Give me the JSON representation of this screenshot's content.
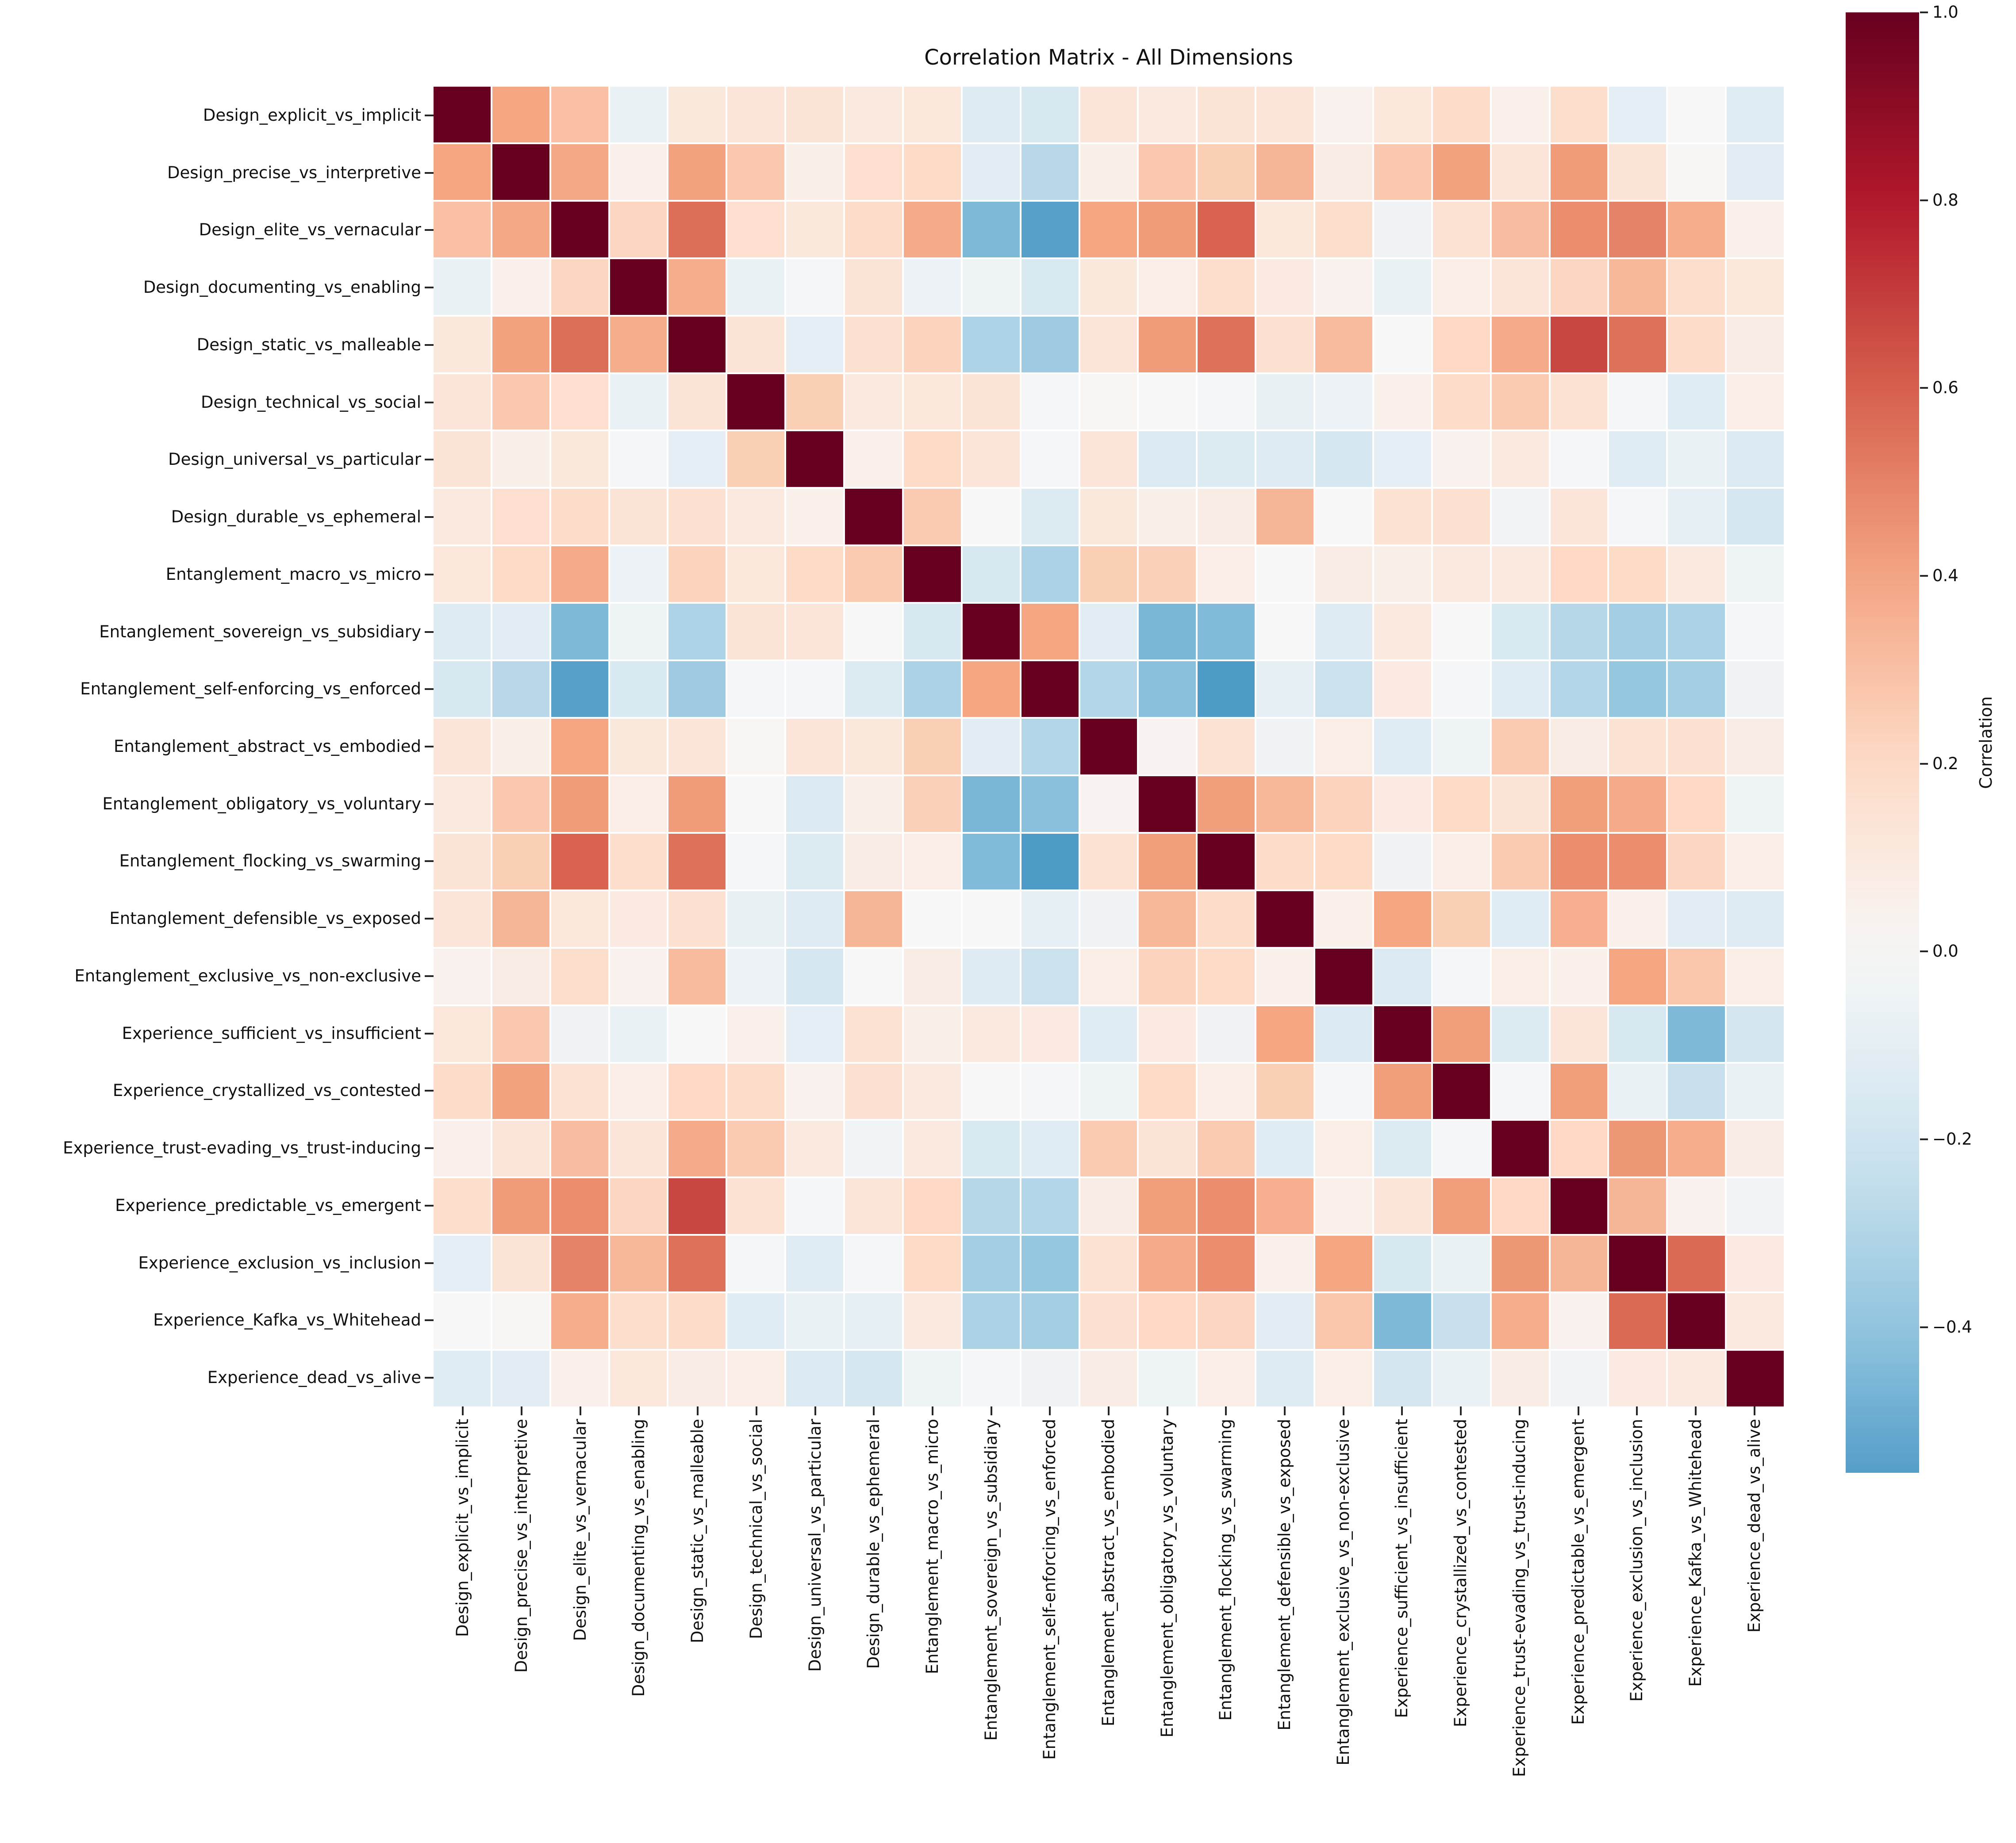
{
  "title": "Correlation Matrix - All Dimensions",
  "colorbar": {
    "label": "Correlation",
    "tick_labels": [
      "1.0",
      "0.8",
      "0.6",
      "0.4",
      "0.2",
      "0.0",
      "−0.2",
      "−0.4"
    ],
    "tick_values": [
      1.0,
      0.8,
      0.6,
      0.4,
      0.2,
      0.0,
      -0.2,
      -0.4
    ],
    "vmax": 1.0,
    "vmin": -0.555
  },
  "chart_data": {
    "type": "heatmap",
    "title": "Correlation Matrix - All Dimensions",
    "colorbar_label": "Correlation",
    "colormap": "RdBu_r",
    "center": 0,
    "norm_range": [
      -1,
      1
    ],
    "grid_line_color": "#ffffff",
    "diagonal_color": "#67001f",
    "categories": [
      "Design_explicit_vs_implicit",
      "Design_precise_vs_interpretive",
      "Design_elite_vs_vernacular",
      "Design_documenting_vs_enabling",
      "Design_static_vs_malleable",
      "Design_technical_vs_social",
      "Design_universal_vs_particular",
      "Design_durable_vs_ephemeral",
      "Entanglement_macro_vs_micro",
      "Entanglement_sovereign_vs_subsidiary",
      "Entanglement_self-enforcing_vs_enforced",
      "Entanglement_abstract_vs_embodied",
      "Entanglement_obligatory_vs_voluntary",
      "Entanglement_flocking_vs_swarming",
      "Entanglement_defensible_vs_exposed",
      "Entanglement_exclusive_vs_non-exclusive",
      "Experience_sufficient_vs_insufficient",
      "Experience_crystallized_vs_contested",
      "Experience_trust-evading_vs_trust-inducing",
      "Experience_predictable_vs_emergent",
      "Experience_exclusion_vs_inclusion",
      "Experience_Kafka_vs_Whitehead",
      "Experience_dead_vs_alive"
    ],
    "matrix": [
      [
        1.0,
        0.4,
        0.3,
        -0.07,
        0.11,
        0.13,
        0.14,
        0.1,
        0.12,
        -0.13,
        -0.17,
        0.13,
        0.1,
        0.14,
        0.13,
        0.04,
        0.12,
        0.19,
        0.05,
        0.18,
        -0.1,
        0.0,
        -0.12
      ],
      [
        0.4,
        1.0,
        0.39,
        0.05,
        0.41,
        0.27,
        0.06,
        0.17,
        0.2,
        -0.11,
        -0.28,
        0.06,
        0.27,
        0.25,
        0.34,
        0.08,
        0.27,
        0.41,
        0.13,
        0.43,
        0.14,
        0.01,
        -0.11
      ],
      [
        0.3,
        0.39,
        1.0,
        0.22,
        0.56,
        0.17,
        0.11,
        0.19,
        0.38,
        -0.45,
        -0.55,
        0.4,
        0.43,
        0.59,
        0.12,
        0.18,
        -0.04,
        0.15,
        0.31,
        0.47,
        0.5,
        0.37,
        0.05
      ],
      [
        -0.07,
        0.05,
        0.22,
        1.0,
        0.37,
        -0.07,
        -0.02,
        0.14,
        -0.06,
        -0.05,
        -0.16,
        0.11,
        0.07,
        0.18,
        0.09,
        0.04,
        -0.07,
        0.07,
        0.13,
        0.22,
        0.33,
        0.18,
        0.12
      ],
      [
        0.11,
        0.41,
        0.56,
        0.37,
        1.0,
        0.14,
        -0.1,
        0.16,
        0.23,
        -0.31,
        -0.36,
        0.13,
        0.43,
        0.55,
        0.16,
        0.32,
        0.0,
        0.21,
        0.38,
        0.67,
        0.55,
        0.19,
        0.08
      ],
      [
        0.13,
        0.27,
        0.17,
        -0.07,
        0.14,
        1.0,
        0.25,
        0.1,
        0.12,
        0.14,
        -0.02,
        0.02,
        0.0,
        -0.02,
        -0.08,
        -0.06,
        0.05,
        0.19,
        0.26,
        0.15,
        -0.02,
        -0.12,
        0.07
      ],
      [
        0.14,
        0.06,
        0.11,
        -0.02,
        -0.1,
        0.25,
        1.0,
        0.05,
        0.2,
        0.13,
        -0.02,
        0.13,
        -0.15,
        -0.14,
        -0.13,
        -0.18,
        -0.1,
        0.04,
        0.1,
        -0.01,
        -0.12,
        -0.07,
        -0.15
      ],
      [
        0.1,
        0.17,
        0.19,
        0.14,
        0.16,
        0.1,
        0.05,
        1.0,
        0.26,
        0.0,
        -0.14,
        0.11,
        0.06,
        0.08,
        0.34,
        0.0,
        0.15,
        0.16,
        -0.03,
        0.13,
        -0.02,
        -0.09,
        -0.18
      ],
      [
        0.12,
        0.2,
        0.38,
        -0.06,
        0.23,
        0.12,
        0.2,
        0.26,
        1.0,
        -0.17,
        -0.32,
        0.25,
        0.24,
        0.07,
        0.0,
        0.08,
        0.06,
        0.1,
        0.1,
        0.21,
        0.2,
        0.1,
        -0.05
      ],
      [
        -0.13,
        -0.11,
        -0.45,
        -0.05,
        -0.31,
        0.14,
        0.13,
        0.0,
        -0.17,
        1.0,
        0.4,
        -0.11,
        -0.46,
        -0.44,
        0.0,
        -0.13,
        0.1,
        0.0,
        -0.16,
        -0.29,
        -0.35,
        -0.32,
        -0.02
      ],
      [
        -0.17,
        -0.28,
        -0.55,
        -0.16,
        -0.36,
        -0.02,
        -0.02,
        -0.14,
        -0.32,
        0.4,
        1.0,
        -0.3,
        -0.42,
        -0.57,
        -0.09,
        -0.22,
        0.09,
        -0.01,
        -0.12,
        -0.3,
        -0.39,
        -0.35,
        -0.04
      ],
      [
        0.13,
        0.06,
        0.4,
        0.11,
        0.13,
        0.02,
        0.13,
        0.11,
        0.25,
        -0.11,
        -0.3,
        1.0,
        0.03,
        0.15,
        -0.04,
        0.07,
        -0.12,
        -0.05,
        0.26,
        0.08,
        0.15,
        0.16,
        0.08
      ],
      [
        0.1,
        0.27,
        0.43,
        0.07,
        0.43,
        0.0,
        -0.15,
        0.06,
        0.24,
        -0.46,
        -0.42,
        0.03,
        1.0,
        0.42,
        0.33,
        0.23,
        0.09,
        0.2,
        0.14,
        0.42,
        0.38,
        0.21,
        -0.05
      ],
      [
        0.14,
        0.25,
        0.59,
        0.18,
        0.55,
        -0.02,
        -0.14,
        0.08,
        0.07,
        -0.44,
        -0.57,
        0.15,
        0.42,
        1.0,
        0.19,
        0.2,
        -0.04,
        0.07,
        0.26,
        0.47,
        0.47,
        0.22,
        0.07
      ],
      [
        0.13,
        0.34,
        0.12,
        0.09,
        0.16,
        -0.08,
        -0.13,
        0.34,
        0.0,
        0.0,
        -0.09,
        -0.04,
        0.33,
        0.19,
        1.0,
        0.05,
        0.4,
        0.25,
        -0.12,
        0.36,
        0.05,
        -0.11,
        -0.13
      ],
      [
        0.04,
        0.08,
        0.18,
        0.04,
        0.32,
        -0.06,
        -0.18,
        0.0,
        0.08,
        -0.13,
        -0.22,
        0.07,
        0.23,
        0.2,
        0.05,
        1.0,
        -0.15,
        -0.02,
        0.07,
        0.05,
        0.4,
        0.28,
        0.07
      ],
      [
        0.12,
        0.27,
        -0.04,
        -0.07,
        0.0,
        0.05,
        -0.1,
        0.15,
        0.06,
        0.1,
        0.09,
        -0.12,
        0.09,
        -0.04,
        0.4,
        -0.15,
        1.0,
        0.42,
        -0.14,
        0.13,
        -0.17,
        -0.45,
        -0.19
      ],
      [
        0.19,
        0.41,
        0.15,
        0.07,
        0.21,
        0.19,
        0.04,
        0.16,
        0.1,
        0.0,
        -0.01,
        -0.05,
        0.2,
        0.07,
        0.25,
        -0.02,
        0.42,
        1.0,
        -0.02,
        0.42,
        -0.07,
        -0.23,
        -0.07
      ],
      [
        0.05,
        0.13,
        0.31,
        0.13,
        0.38,
        0.26,
        0.1,
        -0.03,
        0.1,
        -0.16,
        -0.12,
        0.26,
        0.14,
        0.26,
        -0.12,
        0.07,
        -0.14,
        -0.02,
        1.0,
        0.21,
        0.44,
        0.37,
        0.08
      ],
      [
        0.18,
        0.43,
        0.47,
        0.22,
        0.67,
        0.15,
        -0.01,
        0.13,
        0.21,
        -0.29,
        -0.3,
        0.08,
        0.42,
        0.47,
        0.36,
        0.05,
        0.13,
        0.42,
        0.21,
        1.0,
        0.34,
        0.04,
        -0.03
      ],
      [
        -0.1,
        0.14,
        0.5,
        0.33,
        0.55,
        -0.02,
        -0.12,
        -0.02,
        0.2,
        -0.35,
        -0.39,
        0.15,
        0.38,
        0.47,
        0.05,
        0.4,
        -0.17,
        -0.07,
        0.44,
        0.34,
        1.0,
        0.57,
        0.09
      ],
      [
        0.0,
        0.01,
        0.37,
        0.18,
        0.19,
        -0.12,
        -0.07,
        -0.09,
        0.1,
        -0.32,
        -0.35,
        0.16,
        0.21,
        0.22,
        -0.11,
        0.28,
        -0.45,
        -0.23,
        0.37,
        0.04,
        0.57,
        1.0,
        0.1
      ],
      [
        -0.12,
        -0.11,
        0.05,
        0.12,
        0.08,
        0.07,
        -0.15,
        -0.18,
        -0.05,
        -0.02,
        -0.04,
        0.08,
        -0.05,
        0.07,
        -0.13,
        0.07,
        -0.19,
        -0.07,
        0.08,
        -0.03,
        0.09,
        0.1,
        1.0
      ]
    ]
  }
}
